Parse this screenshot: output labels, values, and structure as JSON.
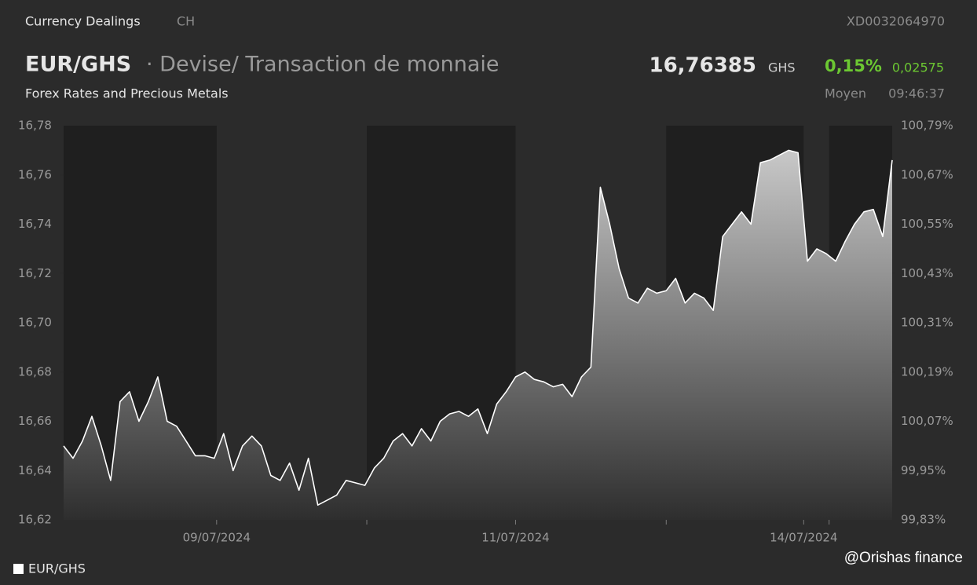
{
  "header": {
    "category": "Currency Dealings",
    "country": "CH",
    "isin": "XD0032064970",
    "symbol": "EUR/GHS",
    "description": "· Devise/ Transaction de monnaie",
    "subtitle": "Forex Rates and Precious Metals",
    "price": "16,76385",
    "currency": "GHS",
    "change_pct": "0,15%",
    "change_abs": "0,02575",
    "price_type": "Moyen",
    "time": "09:46:37"
  },
  "watermark": "@Orishas finance",
  "chart_data": {
    "type": "area",
    "series": [
      {
        "name": "EUR/GHS",
        "color": "#ffffff",
        "values": [
          16.65,
          16.645,
          16.652,
          16.662,
          16.65,
          16.636,
          16.668,
          16.672,
          16.66,
          16.668,
          16.678,
          16.66,
          16.658,
          16.652,
          16.646,
          16.646,
          16.645,
          16.655,
          16.64,
          16.65,
          16.654,
          16.65,
          16.638,
          16.636,
          16.643,
          16.632,
          16.645,
          16.626,
          16.628,
          16.63,
          16.636,
          16.635,
          16.634,
          16.641,
          16.645,
          16.652,
          16.655,
          16.65,
          16.657,
          16.652,
          16.66,
          16.663,
          16.664,
          16.662,
          16.665,
          16.655,
          16.667,
          16.672,
          16.678,
          16.68,
          16.677,
          16.676,
          16.674,
          16.675,
          16.67,
          16.678,
          16.682,
          16.755,
          16.74,
          16.722,
          16.71,
          16.708,
          16.714,
          16.712,
          16.713,
          16.718,
          16.708,
          16.712,
          16.71,
          16.705,
          16.735,
          16.74,
          16.745,
          16.74,
          16.765,
          16.766,
          16.768,
          16.77,
          16.769,
          16.725,
          16.73,
          16.728,
          16.725,
          16.733,
          16.74,
          16.745,
          16.746,
          16.735,
          16.766
        ]
      }
    ],
    "xlim": [
      0,
      88
    ],
    "xticks": [
      {
        "value": 16.25,
        "label": "09/07/2024"
      },
      {
        "value": 32.2,
        "label": null
      },
      {
        "value": 48.0,
        "label": "11/07/2024"
      },
      {
        "value": 64.0,
        "label": null
      },
      {
        "value": 78.6,
        "label": "14/07/2024"
      },
      {
        "value": 81.3,
        "label": null
      }
    ],
    "ylim": [
      16.62,
      16.78
    ],
    "yticks": [
      {
        "value": 16.62,
        "label": "16,62"
      },
      {
        "value": 16.64,
        "label": "16,64"
      },
      {
        "value": 16.66,
        "label": "16,66"
      },
      {
        "value": 16.68,
        "label": "16,68"
      },
      {
        "value": 16.7,
        "label": "16,70"
      },
      {
        "value": 16.72,
        "label": "16,72"
      },
      {
        "value": 16.74,
        "label": "16,74"
      },
      {
        "value": 16.76,
        "label": "16,76"
      },
      {
        "value": 16.78,
        "label": "16,78"
      }
    ],
    "y2lim": [
      99.83,
      100.79
    ],
    "y2ticks": [
      {
        "value": 99.83,
        "label": "99,83%"
      },
      {
        "value": 99.95,
        "label": "99,95%"
      },
      {
        "value": 100.07,
        "label": "100,07%"
      },
      {
        "value": 100.19,
        "label": "100,19%"
      },
      {
        "value": 100.31,
        "label": "100,31%"
      },
      {
        "value": 100.43,
        "label": "100,43%"
      },
      {
        "value": 100.55,
        "label": "100,55%"
      },
      {
        "value": 100.67,
        "label": "100,67%"
      },
      {
        "value": 100.79,
        "label": "100,79%"
      }
    ],
    "legend": "bottom-left"
  }
}
